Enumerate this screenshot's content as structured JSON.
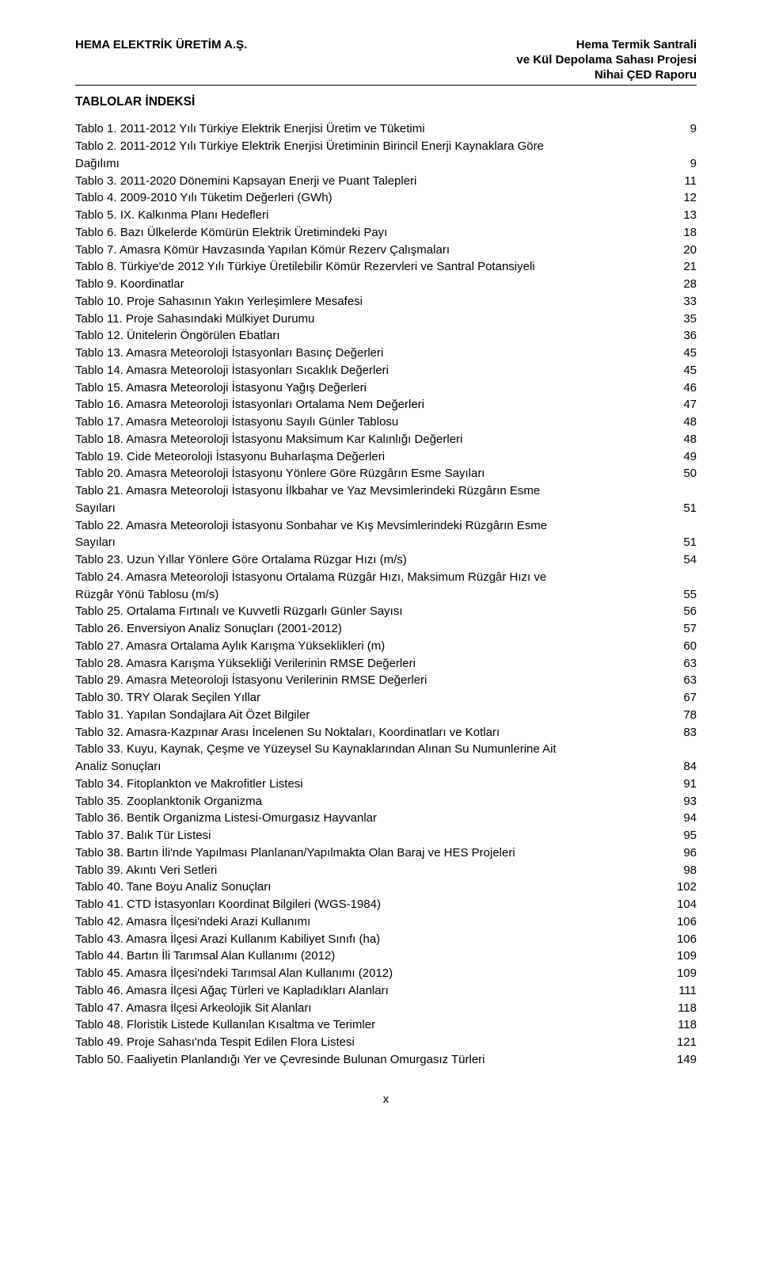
{
  "header": {
    "left": "HEMA ELEKTRİK ÜRETİM A.Ş.",
    "right1": "Hema Termik Santrali",
    "right2": "ve Kül Depolama Sahası Projesi",
    "right3": "Nihai ÇED Raporu"
  },
  "section_title": "TABLOLAR İNDEKSİ",
  "toc": [
    {
      "label": "Tablo 1. 2011-2012 Yılı Türkiye Elektrik Enerjisi Üretim ve Tüketimi",
      "page": "9"
    },
    {
      "label": "Tablo 2. 2011-2012 Yılı Türkiye Elektrik Enerjisi Üretiminin Birincil Enerji Kaynaklara Göre Dağılımı",
      "page": "9",
      "multiline": true
    },
    {
      "label": "Tablo 3. 2011-2020 Dönemini Kapsayan Enerji ve Puant Talepleri",
      "page": "11"
    },
    {
      "label": "Tablo 4. 2009-2010 Yılı Tüketim Değerleri (GWh)",
      "page": "12"
    },
    {
      "label": "Tablo 5. IX. Kalkınma Planı Hedefleri",
      "page": "13"
    },
    {
      "label": "Tablo 6. Bazı Ülkelerde Kömürün Elektrik Üretimindeki Payı",
      "page": "18"
    },
    {
      "label": "Tablo 7. Amasra Kömür Havzasında Yapılan Kömür Rezerv Çalışmaları",
      "page": "20"
    },
    {
      "label": "Tablo 8. Türkiye'de 2012 Yılı Türkiye Üretilebilir Kömür Rezervleri ve Santral Potansiyeli",
      "page": "21"
    },
    {
      "label": "Tablo 9. Koordinatlar",
      "page": "28"
    },
    {
      "label": "Tablo 10. Proje Sahasının Yakın Yerleşimlere Mesafesi",
      "page": "33"
    },
    {
      "label": "Tablo 11. Proje Sahasındaki Mülkiyet Durumu",
      "page": "35"
    },
    {
      "label": "Tablo 12. Ünitelerin Öngörülen Ebatları",
      "page": "36"
    },
    {
      "label": "Tablo 13. Amasra Meteoroloji İstasyonları Basınç Değerleri",
      "page": "45"
    },
    {
      "label": "Tablo 14. Amasra Meteoroloji İstasyonları Sıcaklık Değerleri",
      "page": "45"
    },
    {
      "label": "Tablo 15. Amasra Meteoroloji İstasyonu Yağış Değerleri",
      "page": "46"
    },
    {
      "label": "Tablo 16. Amasra Meteoroloji İstasyonları Ortalama Nem Değerleri",
      "page": "47"
    },
    {
      "label": "Tablo 17. Amasra Meteoroloji İstasyonu Sayılı Günler Tablosu",
      "page": "48"
    },
    {
      "label": "Tablo 18. Amasra Meteoroloji İstasyonu Maksimum Kar Kalınlığı Değerleri",
      "page": "48"
    },
    {
      "label": "Tablo 19. Cide Meteoroloji İstasyonu Buharlaşma Değerleri",
      "page": "49"
    },
    {
      "label": "Tablo 20. Amasra Meteoroloji İstasyonu Yönlere Göre Rüzgârın Esme Sayıları",
      "page": "50"
    },
    {
      "label": "Tablo 21. Amasra Meteoroloji İstasyonu İlkbahar ve Yaz Mevsimlerindeki Rüzgârın Esme Sayıları",
      "page": "51",
      "multiline": true
    },
    {
      "label": "Tablo 22. Amasra Meteoroloji İstasyonu Sonbahar ve Kış Mevsimlerindeki Rüzgârın Esme Sayıları",
      "page": "51",
      "multiline": true
    },
    {
      "label": "Tablo 23. Uzun Yıllar Yönlere Göre Ortalama Rüzgar Hızı (m/s)",
      "page": "54"
    },
    {
      "label": "Tablo 24. Amasra Meteoroloji İstasyonu Ortalama Rüzgâr Hızı, Maksimum Rüzgâr Hızı ve Rüzgâr Yönü Tablosu (m/s)",
      "page": "55",
      "multiline": true
    },
    {
      "label": "Tablo 25. Ortalama Fırtınalı ve Kuvvetli Rüzgarlı Günler Sayısı",
      "page": "56"
    },
    {
      "label": "Tablo 26. Enversiyon Analiz Sonuçları (2001-2012)",
      "page": "57"
    },
    {
      "label": "Tablo 27. Amasra Ortalama Aylık Karışma Yükseklikleri (m)",
      "page": "60"
    },
    {
      "label": "Tablo 28. Amasra Karışma Yüksekliği Verilerinin RMSE Değerleri",
      "page": "63"
    },
    {
      "label": "Tablo 29. Amasra Meteoroloji İstasyonu Verilerinin  RMSE Değerleri",
      "page": "63"
    },
    {
      "label": "Tablo 30. TRY Olarak Seçilen Yıllar",
      "page": "67"
    },
    {
      "label": "Tablo 31. Yapılan Sondajlara Ait Özet Bilgiler",
      "page": "78"
    },
    {
      "label": "Tablo 32. Amasra-Kazpınar Arası İncelenen Su Noktaları, Koordinatları ve Kotları",
      "page": "83"
    },
    {
      "label": "Tablo 33. Kuyu, Kaynak, Çeşme ve Yüzeysel Su Kaynaklarından Alınan Su Numunlerine Ait Analiz Sonuçları",
      "page": "84",
      "multiline": true
    },
    {
      "label": "Tablo 34. Fitoplankton ve Makrofitler Listesi",
      "page": "91"
    },
    {
      "label": "Tablo 35. Zooplanktonik Organizma",
      "page": "93"
    },
    {
      "label": "Tablo 36. Bentik Organizma Listesi-Omurgasız Hayvanlar",
      "page": "94"
    },
    {
      "label": "Tablo 37. Balık Tür Listesi",
      "page": "95"
    },
    {
      "label": "Tablo 38. Bartın İli'nde Yapılması Planlanan/Yapılmakta Olan Baraj ve HES Projeleri",
      "page": "96"
    },
    {
      "label": "Tablo 39. Akıntı Veri Setleri",
      "page": "98"
    },
    {
      "label": "Tablo 40. Tane Boyu Analiz Sonuçları",
      "page": "102"
    },
    {
      "label": "Tablo 41. CTD İstasyonları Koordinat Bilgileri (WGS-1984)",
      "page": "104"
    },
    {
      "label": "Tablo 42. Amasra İlçesi'ndeki Arazi Kullanımı",
      "page": "106"
    },
    {
      "label": "Tablo 43. Amasra İlçesi Arazi Kullanım Kabiliyet Sınıfı (ha)",
      "page": "106"
    },
    {
      "label": "Tablo 44. Bartın İli Tarımsal Alan Kullanımı (2012)",
      "page": "109"
    },
    {
      "label": "Tablo 45. Amasra İlçesi'ndeki Tarımsal Alan Kullanımı (2012)",
      "page": "109"
    },
    {
      "label": "Tablo 46. Amasra İlçesi Ağaç Türleri ve Kapladıkları Alanları",
      "page": "111"
    },
    {
      "label": "Tablo 47. Amasra İlçesi Arkeolojik Sit Alanları",
      "page": "118"
    },
    {
      "label": "Tablo 48. Floristik Listede Kullanılan Kısaltma ve Terimler",
      "page": "118"
    },
    {
      "label": "Tablo 49. Proje Sahası'nda Tespit Edilen Flora Listesi",
      "page": "121"
    },
    {
      "label": "Tablo 50. Faaliyetin Planlandığı Yer ve Çevresinde Bulunan Omurgasız Türleri",
      "page": "149"
    }
  ],
  "footer": "x"
}
